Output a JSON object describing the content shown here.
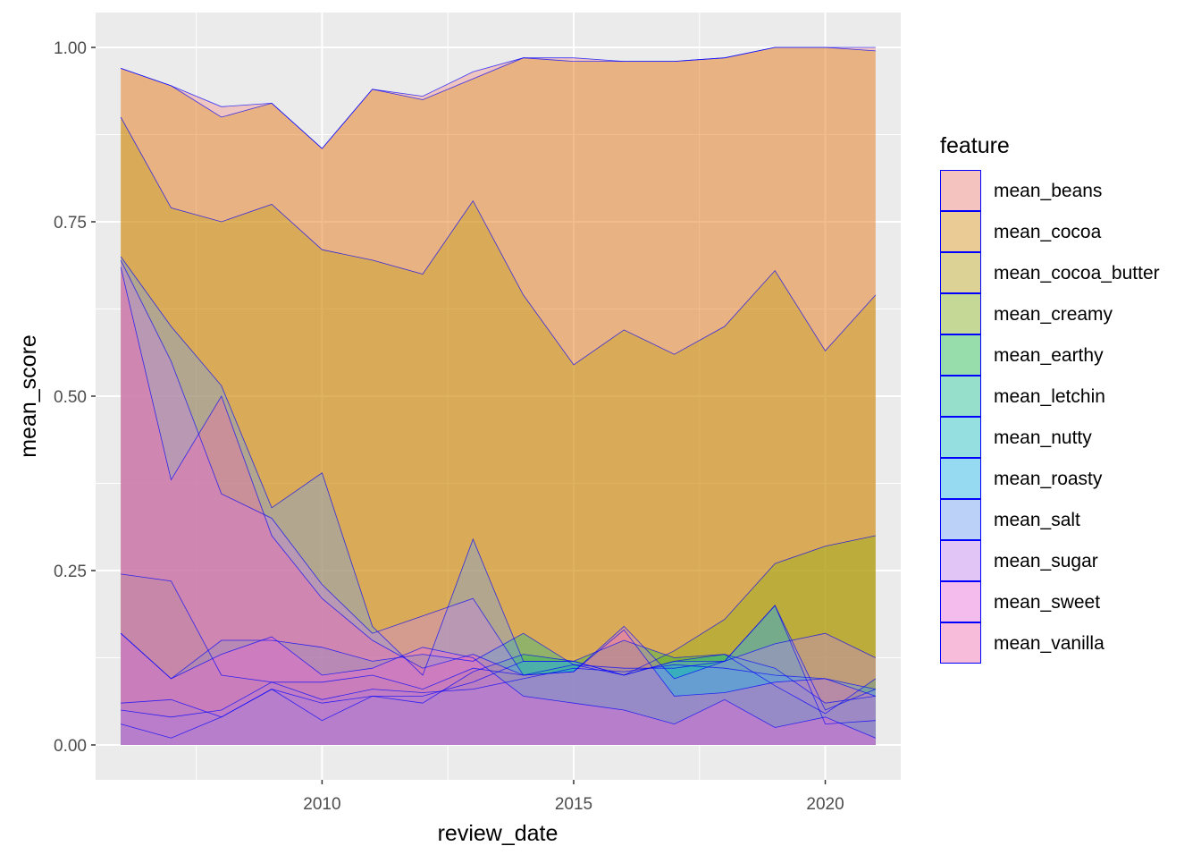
{
  "chart_data": {
    "type": "area",
    "xlabel": "review_date",
    "ylabel": "mean_score",
    "xlim": [
      2005.5,
      2021.5
    ],
    "ylim": [
      -0.05,
      1.05
    ],
    "x_ticks": [
      2010,
      2015,
      2020
    ],
    "x_tick_labels": [
      "2010",
      "2015",
      "2020"
    ],
    "y_ticks": [
      0,
      0.25,
      0.5,
      0.75,
      1
    ],
    "y_tick_labels": [
      "0.00",
      "0.25",
      "0.50",
      "0.75",
      "1.00"
    ],
    "grid": true,
    "legend_position": "right",
    "legend_title": "feature",
    "x": [
      2006,
      2007,
      2008,
      2009,
      2010,
      2011,
      2012,
      2013,
      2014,
      2015,
      2016,
      2017,
      2018,
      2019,
      2020,
      2021
    ],
    "series": [
      {
        "name": "mean_beans",
        "color": "#F8766D",
        "values": [
          0.97,
          0.945,
          0.915,
          0.92,
          0.855,
          0.94,
          0.93,
          0.965,
          0.985,
          0.985,
          0.98,
          0.98,
          0.985,
          1.0,
          1.0,
          1.0
        ]
      },
      {
        "name": "mean_cocoa",
        "color": "#DE8C00",
        "values": [
          0.97,
          0.945,
          0.9,
          0.92,
          0.855,
          0.94,
          0.925,
          0.955,
          0.985,
          0.98,
          0.98,
          0.98,
          0.985,
          1.0,
          1.0,
          0.995
        ]
      },
      {
        "name": "mean_cocoa_butter",
        "color": "#B79F00",
        "values": [
          0.9,
          0.77,
          0.75,
          0.775,
          0.71,
          0.695,
          0.675,
          0.78,
          0.645,
          0.545,
          0.595,
          0.56,
          0.6,
          0.68,
          0.565,
          0.645
        ]
      },
      {
        "name": "mean_creamy",
        "color": "#7CAE00",
        "values": [
          0.245,
          0.235,
          0.1,
          0.09,
          0.09,
          0.1,
          0.08,
          0.11,
          0.1,
          0.115,
          0.1,
          0.135,
          0.18,
          0.26,
          0.285,
          0.3
        ]
      },
      {
        "name": "mean_earthy",
        "color": "#00BA38",
        "values": [
          0.03,
          0.01,
          0.04,
          0.08,
          0.035,
          0.07,
          0.06,
          0.105,
          0.13,
          0.12,
          0.15,
          0.125,
          0.13,
          0.085,
          0.045,
          0.095
        ]
      },
      {
        "name": "mean_letchin",
        "color": "#00C08B",
        "values": [
          0.16,
          0.095,
          0.15,
          0.15,
          0.14,
          0.12,
          0.13,
          0.12,
          0.16,
          0.115,
          0.11,
          0.11,
          0.12,
          0.2,
          0.03,
          0.035
        ]
      },
      {
        "name": "mean_nutty",
        "color": "#00BFC4",
        "values": [
          0.06,
          0.065,
          0.04,
          0.08,
          0.06,
          0.07,
          0.07,
          0.09,
          0.12,
          0.12,
          0.1,
          0.12,
          0.13,
          0.11,
          0.06,
          0.07
        ]
      },
      {
        "name": "mean_roasty",
        "color": "#00B4F0",
        "values": [
          0.05,
          0.04,
          0.05,
          0.09,
          0.065,
          0.08,
          0.075,
          0.08,
          0.095,
          0.11,
          0.105,
          0.115,
          0.11,
          0.1,
          0.095,
          0.08
        ]
      },
      {
        "name": "mean_salt",
        "color": "#619CFF",
        "values": [
          0.7,
          0.6,
          0.515,
          0.34,
          0.39,
          0.17,
          0.1,
          0.295,
          0.12,
          0.12,
          0.1,
          0.12,
          0.12,
          0.2,
          0.05,
          0.08
        ]
      },
      {
        "name": "mean_sugar",
        "color": "#C77CFF",
        "values": [
          0.695,
          0.55,
          0.36,
          0.325,
          0.23,
          0.16,
          0.185,
          0.21,
          0.1,
          0.105,
          0.17,
          0.095,
          0.12,
          0.145,
          0.16,
          0.125
        ]
      },
      {
        "name": "mean_sweet",
        "color": "#F564E3",
        "values": [
          0.16,
          0.095,
          0.13,
          0.155,
          0.1,
          0.11,
          0.14,
          0.125,
          0.07,
          0.06,
          0.05,
          0.03,
          0.065,
          0.025,
          0.04,
          0.01
        ]
      },
      {
        "name": "mean_vanilla",
        "color": "#FF64B0",
        "values": [
          0.685,
          0.38,
          0.5,
          0.3,
          0.21,
          0.15,
          0.11,
          0.13,
          0.1,
          0.105,
          0.165,
          0.07,
          0.075,
          0.09,
          0.095,
          0.07
        ]
      }
    ],
    "outline_color": "#0000FF",
    "panel_background": "#EBEBEB"
  }
}
